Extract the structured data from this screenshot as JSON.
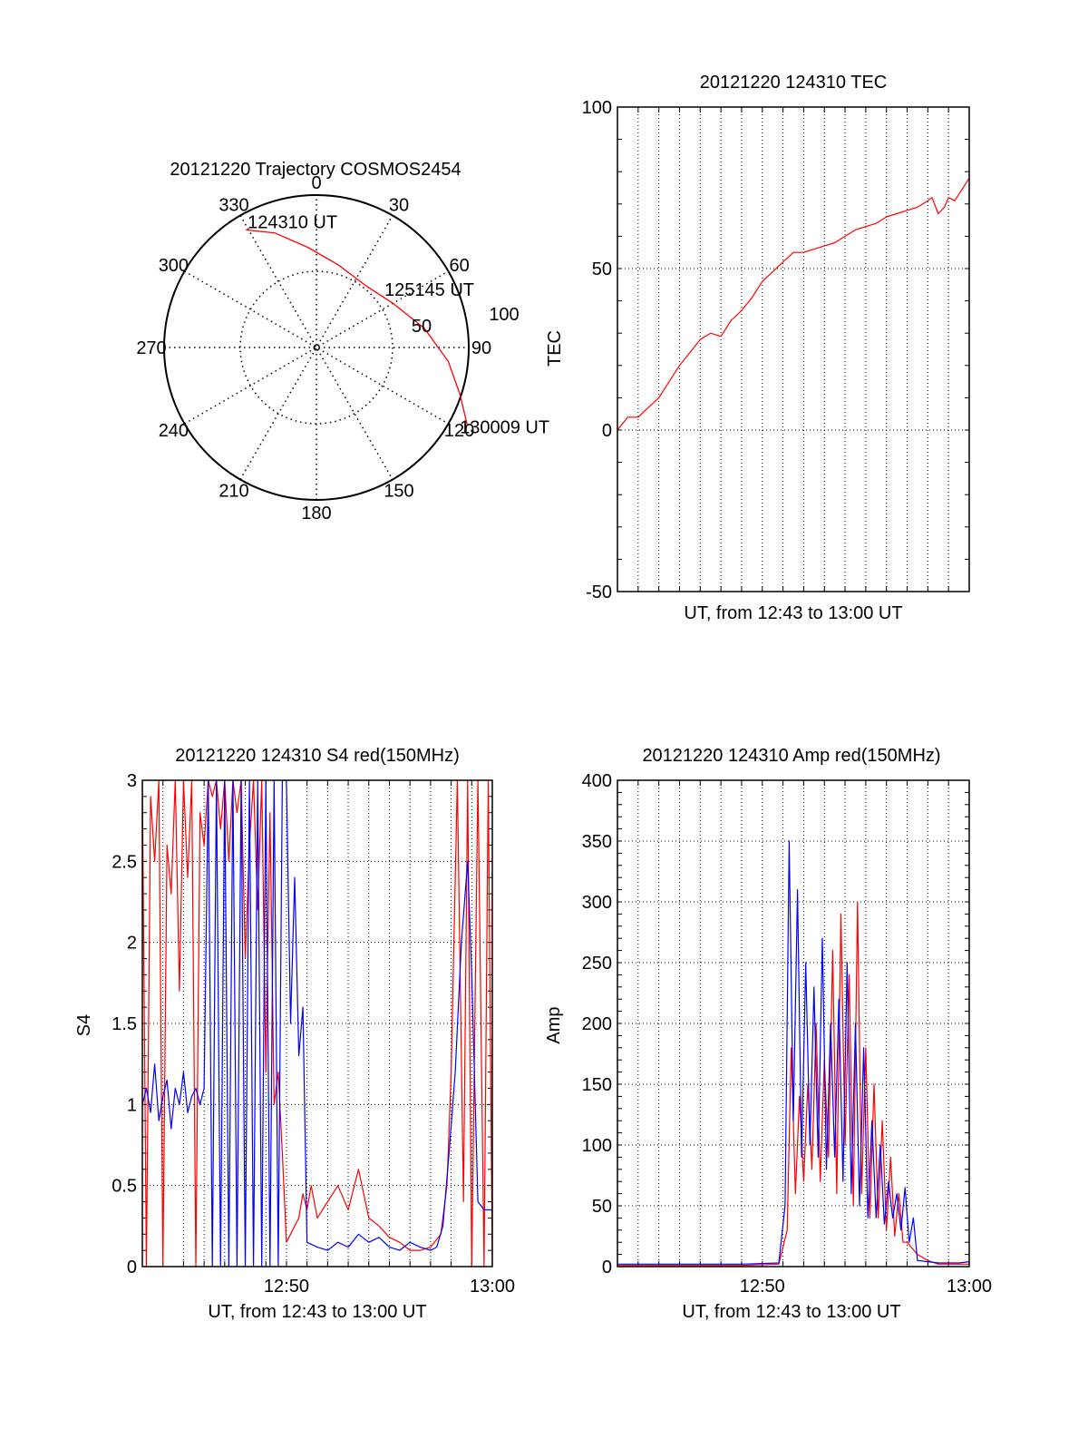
{
  "chart_data": [
    {
      "type": "polar",
      "title": "20121220 Trajectory COSMOS2454",
      "azimuth_labels": [
        "0",
        "30",
        "60",
        "90",
        "120",
        "150",
        "180",
        "210",
        "240",
        "270",
        "300",
        "330"
      ],
      "radius_labels": [
        "50",
        "100"
      ],
      "rlim": [
        0,
        100
      ],
      "grid": true,
      "series": [
        {
          "color": "#ff0000",
          "points": [
            {
              "az": 329,
              "r": 90
            },
            {
              "az": 340,
              "r": 80
            },
            {
              "az": 355,
              "r": 66
            },
            {
              "az": 15,
              "r": 56
            },
            {
              "az": 40,
              "r": 52
            },
            {
              "az": 60,
              "r": 58
            },
            {
              "az": 80,
              "r": 72
            },
            {
              "az": 96,
              "r": 87
            },
            {
              "az": 108,
              "r": 99
            },
            {
              "az": 117,
              "r": 111
            }
          ]
        }
      ],
      "annotations": [
        {
          "text": "124310 UT",
          "az": 329,
          "r": 90
        },
        {
          "text": "125145 UT",
          "az": 55,
          "r": 56
        },
        {
          "text": "130009 UT",
          "az": 117,
          "r": 111
        }
      ]
    },
    {
      "type": "line",
      "title": "20121220 124310 TEC",
      "xlabel": "UT, from 12:43 to 13:00 UT",
      "ylabel": "TEC",
      "xlim": [
        0,
        17
      ],
      "ylim": [
        -50,
        100
      ],
      "yticks": [
        -50,
        0,
        50,
        100
      ],
      "grid": true,
      "series": [
        {
          "color": "#ff0000",
          "x": [
            0,
            0.5,
            1.0,
            1.5,
            2.0,
            2.5,
            3.0,
            3.5,
            4.0,
            4.5,
            5.0,
            5.5,
            6.0,
            6.5,
            7.0,
            7.5,
            8.0,
            8.5,
            9.0,
            9.5,
            10.0,
            10.5,
            11.0,
            11.5,
            12.0,
            12.5,
            13.0,
            13.5,
            14.0,
            14.5,
            15.0,
            15.2,
            15.5,
            15.8,
            16.0,
            16.3,
            16.6,
            17.0
          ],
          "y": [
            0,
            4,
            4,
            7,
            10,
            15,
            20,
            24,
            28,
            30,
            29,
            34,
            37,
            41,
            46,
            49,
            52,
            55,
            55,
            56,
            57,
            58,
            60,
            62,
            63,
            64,
            66,
            67,
            68,
            69,
            71,
            72,
            67,
            69,
            72,
            71,
            74,
            78
          ]
        }
      ]
    },
    {
      "type": "line",
      "title": "20121220 124310 S4 red(150MHz)",
      "xlabel": "UT, from 12:43 to 13:00 UT",
      "ylabel": "S4",
      "xlim": [
        0,
        17
      ],
      "ylim": [
        0,
        3
      ],
      "yticks": [
        0,
        0.5,
        1,
        1.5,
        2,
        2.5,
        3
      ],
      "xticks": [
        {
          "value": 7,
          "label": "12:50"
        },
        {
          "value": 17,
          "label": "13:00"
        }
      ],
      "grid": true,
      "series": [
        {
          "color": "#ff0000",
          "x": [
            0,
            0.2,
            0.4,
            0.6,
            0.8,
            1.0,
            1.2,
            1.4,
            1.6,
            1.8,
            2.0,
            2.2,
            2.4,
            2.6,
            2.8,
            3.0,
            3.2,
            3.4,
            3.6,
            3.8,
            4.0,
            4.2,
            4.4,
            4.6,
            4.8,
            5.0,
            5.2,
            5.4,
            5.6,
            5.8,
            6.0,
            6.2,
            6.4,
            6.6,
            6.8,
            7.0,
            7.2,
            7.4,
            7.6,
            7.8,
            8.0,
            8.2,
            8.5,
            9.0,
            9.5,
            10.0,
            10.5,
            11.0,
            11.5,
            12.0,
            12.5,
            13.0,
            13.5,
            14.0,
            14.5,
            14.8,
            15.0,
            15.3,
            15.6,
            15.8,
            16.0,
            16.3,
            16.6,
            16.8,
            17.0
          ],
          "y": [
            3,
            0,
            2.9,
            2.5,
            3,
            0,
            2.6,
            2.3,
            3,
            1.7,
            3,
            2.4,
            3,
            0,
            2.8,
            2.6,
            3,
            2.9,
            3,
            2.7,
            3,
            2.5,
            3,
            2.8,
            3,
            1.9,
            2.6,
            3,
            2.2,
            3,
            1.2,
            2.8,
            1.0,
            1.2,
            0.7,
            0.15,
            0.2,
            0.25,
            0.3,
            0.45,
            0.35,
            0.5,
            0.3,
            0.4,
            0.5,
            0.35,
            0.6,
            0.3,
            0.25,
            0.18,
            0.15,
            0.1,
            0.1,
            0.12,
            0.2,
            0.5,
            1.2,
            3,
            0.4,
            3,
            0,
            3,
            0,
            3,
            0
          ]
        },
        {
          "color": "#0000ff",
          "x": [
            0,
            0.2,
            0.4,
            0.6,
            0.8,
            1.0,
            1.2,
            1.4,
            1.6,
            1.8,
            2.0,
            2.2,
            2.4,
            2.6,
            2.8,
            3.0,
            3.2,
            3.4,
            3.6,
            3.8,
            4.0,
            4.2,
            4.4,
            4.6,
            4.8,
            5.0,
            5.2,
            5.4,
            5.6,
            5.8,
            6.0,
            6.2,
            6.4,
            6.6,
            6.8,
            7.0,
            7.2,
            7.4,
            7.6,
            7.8,
            8.0,
            8.5,
            9.0,
            9.5,
            10.0,
            10.5,
            11.0,
            11.5,
            12.0,
            12.5,
            13.0,
            13.5,
            14.0,
            14.3,
            14.6,
            14.9,
            15.2,
            15.5,
            15.8,
            16.0,
            16.3,
            16.6,
            17.0
          ],
          "y": [
            1.0,
            1.1,
            0.95,
            1.25,
            0.9,
            1.05,
            1.15,
            0.85,
            1.1,
            1.0,
            1.2,
            0.95,
            1.05,
            1.1,
            1.0,
            1.1,
            3,
            0,
            3,
            0,
            3,
            0,
            3,
            0,
            3,
            0,
            3,
            0,
            3,
            0,
            3,
            0,
            3,
            0,
            3,
            3,
            1.5,
            2.4,
            1.3,
            1.6,
            0.15,
            0.12,
            0.1,
            0.15,
            0.12,
            0.2,
            0.15,
            0.18,
            0.12,
            0.1,
            0.15,
            0.12,
            0.1,
            0.12,
            0.25,
            0.7,
            1.2,
            2.0,
            2.5,
            1.8,
            0.4,
            0.35,
            0.35
          ]
        }
      ]
    },
    {
      "type": "line",
      "title": "20121220 124310 Amp red(150MHz)",
      "xlabel": "UT, from 12:43 to 13:00 UT",
      "ylabel": "Amp",
      "xlim": [
        0,
        17
      ],
      "ylim": [
        0,
        400
      ],
      "yticks": [
        0,
        50,
        100,
        150,
        200,
        250,
        300,
        350,
        400
      ],
      "xticks": [
        {
          "value": 7,
          "label": "12:50"
        },
        {
          "value": 17,
          "label": "13:00"
        }
      ],
      "grid": true,
      "series": [
        {
          "color": "#ff0000",
          "x": [
            0,
            2,
            4,
            6,
            7.8,
            8.2,
            8.4,
            8.6,
            8.8,
            9.0,
            9.2,
            9.4,
            9.6,
            9.8,
            10.0,
            10.2,
            10.4,
            10.6,
            10.8,
            11.0,
            11.2,
            11.4,
            11.6,
            11.8,
            12.0,
            12.2,
            12.4,
            12.6,
            12.8,
            13.0,
            13.2,
            13.4,
            13.6,
            13.8,
            14.0,
            14.5,
            15.0,
            15.5,
            16.0,
            16.5,
            17.0
          ],
          "y": [
            1,
            1,
            1,
            1,
            2,
            30,
            180,
            60,
            140,
            70,
            150,
            80,
            200,
            70,
            170,
            90,
            260,
            60,
            290,
            100,
            240,
            50,
            300,
            60,
            180,
            40,
            150,
            40,
            120,
            30,
            90,
            25,
            60,
            20,
            20,
            10,
            5,
            2,
            2,
            2,
            2
          ]
        },
        {
          "color": "#0000ff",
          "x": [
            0,
            2,
            4,
            6,
            7.8,
            8.1,
            8.3,
            8.5,
            8.7,
            8.9,
            9.1,
            9.3,
            9.5,
            9.7,
            9.9,
            10.1,
            10.3,
            10.5,
            10.7,
            10.9,
            11.1,
            11.3,
            11.5,
            11.7,
            11.9,
            12.1,
            12.3,
            12.5,
            12.7,
            12.9,
            13.1,
            13.3,
            13.5,
            13.7,
            13.9,
            14.1,
            14.3,
            14.5,
            15.0,
            15.5,
            16.0,
            16.5,
            17.0
          ],
          "y": [
            2,
            2,
            2,
            2,
            3,
            50,
            350,
            120,
            310,
            90,
            250,
            100,
            230,
            90,
            270,
            80,
            200,
            90,
            220,
            70,
            250,
            60,
            200,
            50,
            180,
            40,
            120,
            40,
            100,
            35,
            70,
            40,
            60,
            30,
            65,
            20,
            40,
            5,
            4,
            3,
            3,
            3,
            4
          ]
        }
      ]
    }
  ]
}
